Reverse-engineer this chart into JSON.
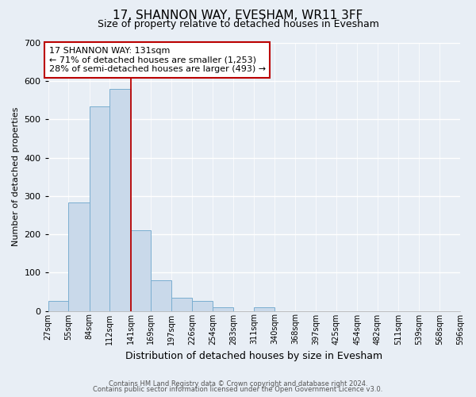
{
  "title": "17, SHANNON WAY, EVESHAM, WR11 3FF",
  "subtitle": "Size of property relative to detached houses in Evesham",
  "xlabel": "Distribution of detached houses by size in Evesham",
  "ylabel": "Number of detached properties",
  "bar_color": "#c9d9ea",
  "bar_edge_color": "#7aaed0",
  "background_color": "#e8eef5",
  "grid_color": "#ffffff",
  "bin_edges": [
    27,
    55,
    84,
    112,
    141,
    169,
    197,
    226,
    254,
    283,
    311,
    340,
    368,
    397,
    425,
    454,
    482,
    511,
    539,
    568,
    596
  ],
  "bin_labels": [
    "27sqm",
    "55sqm",
    "84sqm",
    "112sqm",
    "141sqm",
    "169sqm",
    "197sqm",
    "226sqm",
    "254sqm",
    "283sqm",
    "311sqm",
    "340sqm",
    "368sqm",
    "397sqm",
    "425sqm",
    "454sqm",
    "482sqm",
    "511sqm",
    "539sqm",
    "568sqm",
    "596sqm"
  ],
  "bar_heights": [
    25,
    283,
    535,
    580,
    210,
    80,
    35,
    25,
    10,
    0,
    10,
    0,
    0,
    0,
    0,
    0,
    0,
    0,
    0,
    0
  ],
  "vline_x": 141,
  "vline_color": "#bb0000",
  "annotation_title": "17 SHANNON WAY: 131sqm",
  "annotation_line1": "← 71% of detached houses are smaller (1,253)",
  "annotation_line2": "28% of semi-detached houses are larger (493) →",
  "annotation_box_facecolor": "#ffffff",
  "annotation_box_edgecolor": "#bb0000",
  "ylim": [
    0,
    700
  ],
  "yticks": [
    0,
    100,
    200,
    300,
    400,
    500,
    600,
    700
  ],
  "title_fontsize": 11,
  "subtitle_fontsize": 9,
  "xlabel_fontsize": 9,
  "ylabel_fontsize": 8,
  "xtick_fontsize": 7,
  "ytick_fontsize": 8,
  "footer1": "Contains HM Land Registry data © Crown copyright and database right 2024.",
  "footer2": "Contains public sector information licensed under the Open Government Licence v3.0."
}
